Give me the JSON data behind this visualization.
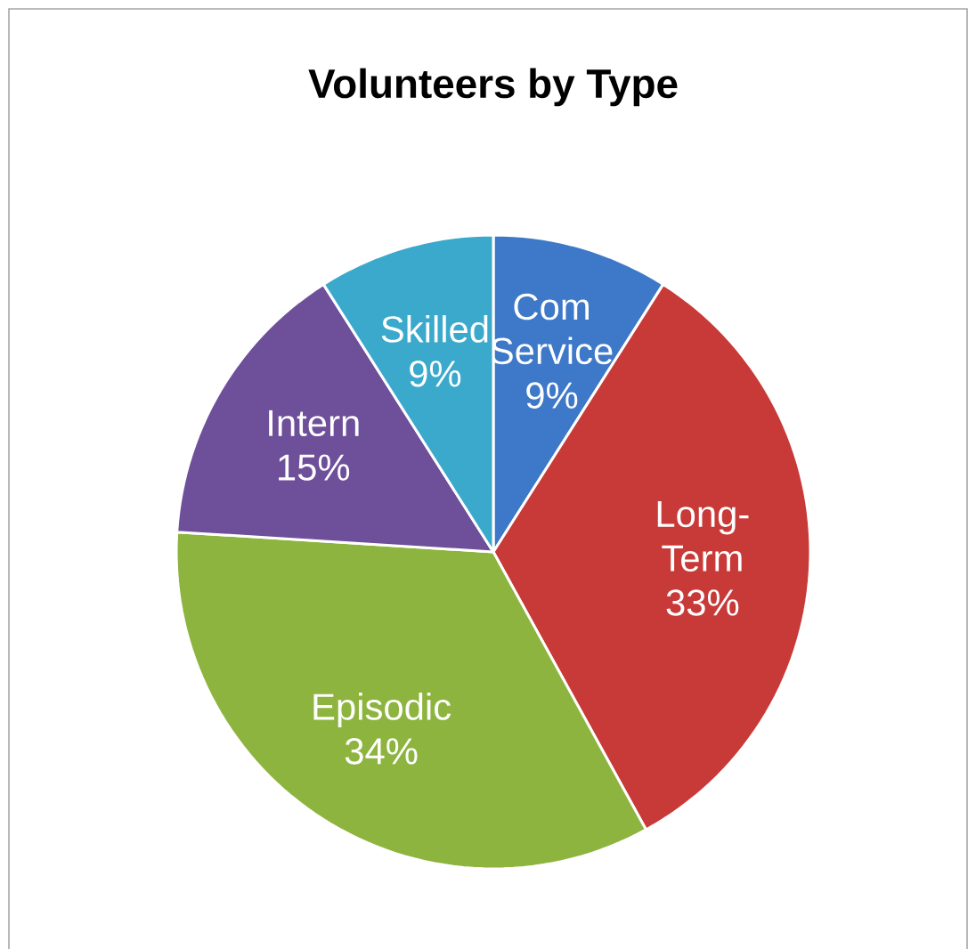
{
  "chart_data": {
    "type": "pie",
    "title": "Volunteers by Type",
    "categories": [
      "Com Service",
      "Long-Term",
      "Episodic",
      "Intern",
      "Skilled"
    ],
    "values": [
      9,
      33,
      34,
      15,
      9
    ],
    "value_labels": [
      "9%",
      "33%",
      "34%",
      "15%",
      "9%"
    ],
    "colors": [
      "#3e78c8",
      "#c83a38",
      "#8db43e",
      "#6e4f9a",
      "#3aa9cc"
    ]
  }
}
